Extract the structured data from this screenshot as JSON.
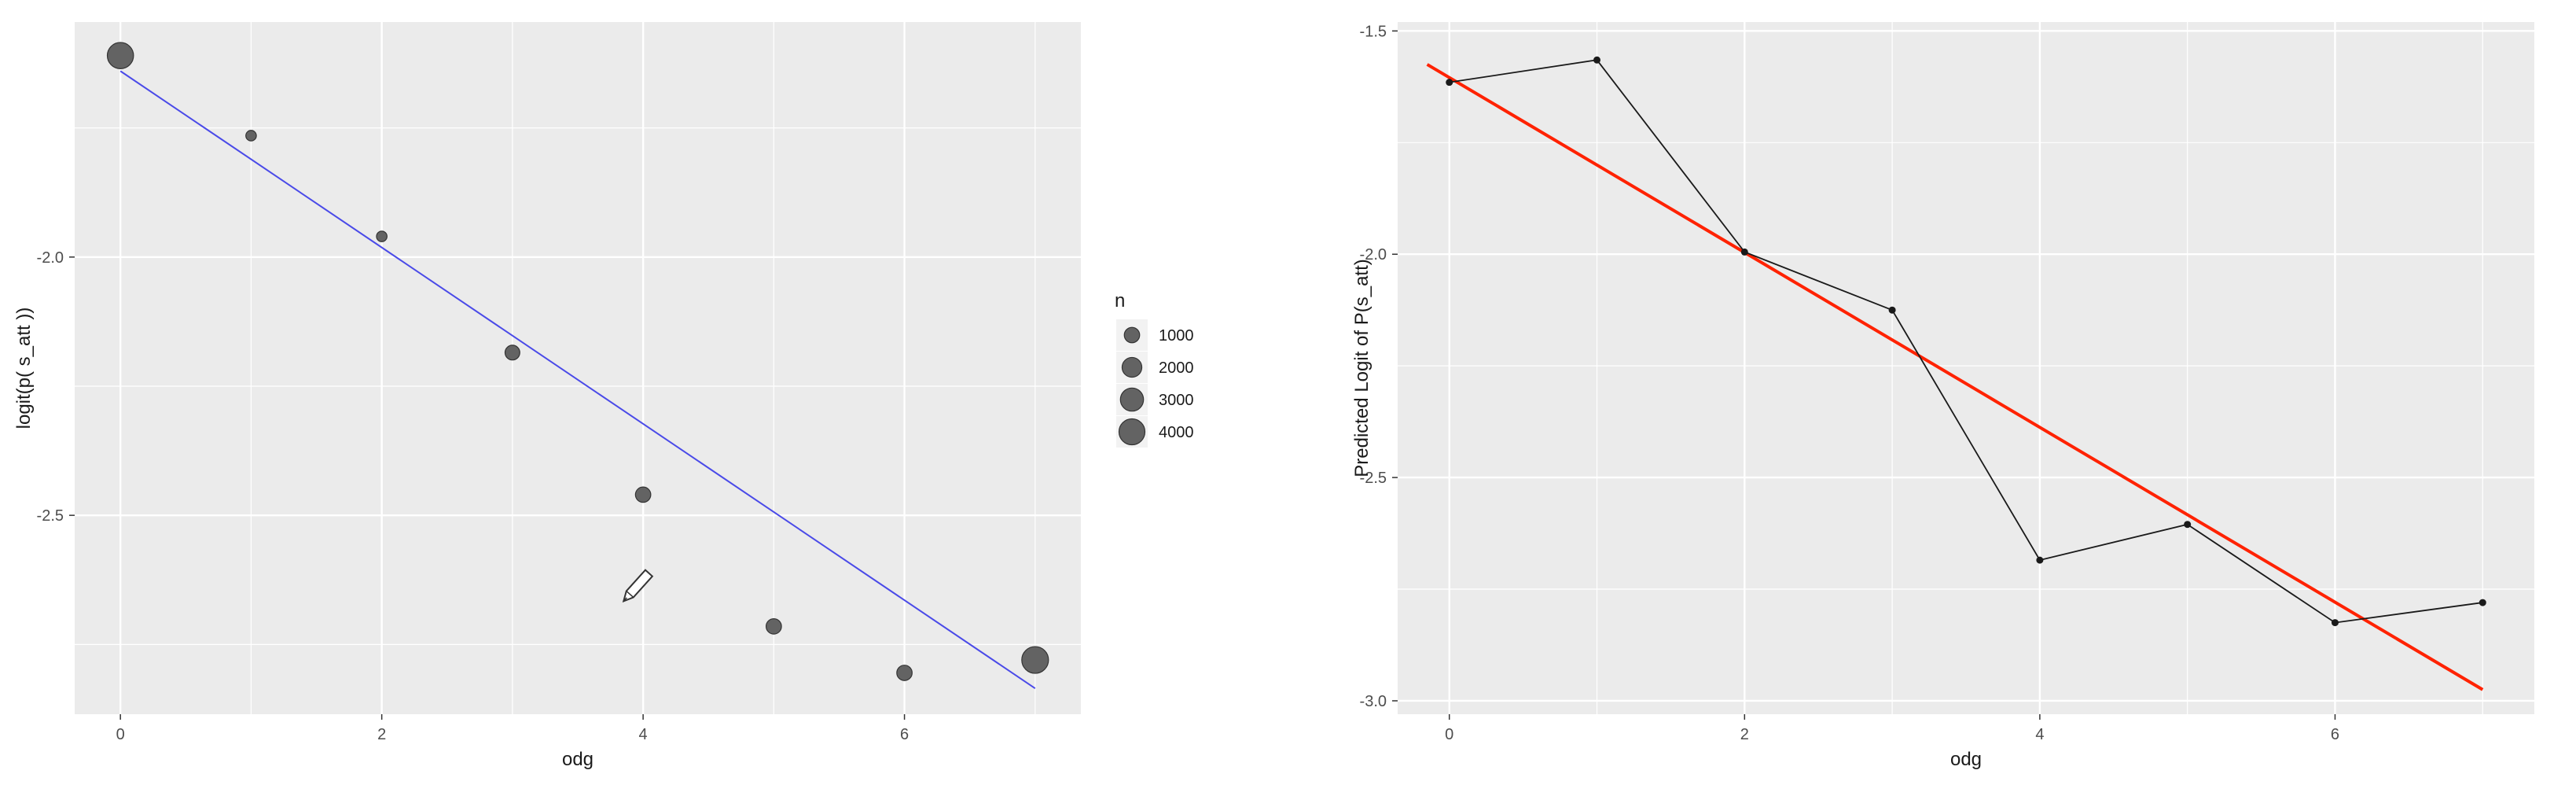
{
  "chart_data": [
    {
      "type": "scatter",
      "xlabel": "odg",
      "ylabel": "logit(p( s_att ))",
      "xlim": [
        -0.35,
        7.35
      ],
      "ylim": [
        -2.885,
        -1.545
      ],
      "x_ticks": [
        0,
        2,
        4,
        6
      ],
      "y_ticks": [
        -2.0,
        -2.5
      ],
      "grid": true,
      "points": [
        {
          "x": 0,
          "y": -1.61,
          "n": 4100
        },
        {
          "x": 1,
          "y": -1.765,
          "n": 300
        },
        {
          "x": 2,
          "y": -1.96,
          "n": 300
        },
        {
          "x": 3,
          "y": -2.185,
          "n": 900
        },
        {
          "x": 4,
          "y": -2.46,
          "n": 1000
        },
        {
          "x": 5,
          "y": -2.715,
          "n": 1000
        },
        {
          "x": 6,
          "y": -2.805,
          "n": 1000
        },
        {
          "x": 7,
          "y": -2.78,
          "n": 4300
        }
      ],
      "fit_line": {
        "x": [
          0,
          7
        ],
        "y": [
          -1.64,
          -2.835
        ],
        "color": "#4a4ae8"
      },
      "legend": {
        "title": "n",
        "placement": "right",
        "entries": [
          {
            "label": "1000",
            "n": 1000
          },
          {
            "label": "2000",
            "n": 2000
          },
          {
            "label": "3000",
            "n": 3000
          },
          {
            "label": "4000",
            "n": 4000
          }
        ]
      },
      "colors": {
        "panel": "#ebebeb",
        "grid": "#ffffff",
        "point_fill": "#636363",
        "point_stroke": "#333333"
      }
    },
    {
      "type": "line",
      "xlabel": "odg",
      "ylabel": "Predicted Logit of P(s_att)",
      "xlim": [
        -0.35,
        7.35
      ],
      "ylim": [
        -3.03,
        -1.48
      ],
      "x_ticks": [
        0,
        2,
        4,
        6
      ],
      "y_ticks": [
        -1.5,
        -2.0,
        -2.5,
        -3.0
      ],
      "y_tick_labels": [
        "-1.5",
        "-2.0",
        "-2.5",
        "-3.0"
      ],
      "grid": true,
      "series": [
        {
          "x": [
            0,
            1,
            2,
            3,
            4,
            5,
            6,
            7
          ],
          "values": [
            -1.615,
            -1.565,
            -1.995,
            -2.125,
            -2.685,
            -2.605,
            -2.825,
            -2.78
          ],
          "color": "#1a1a1a"
        }
      ],
      "fit_line": {
        "x": [
          -0.15,
          7
        ],
        "y": [
          -1.575,
          -2.975
        ],
        "color": "#ff2200"
      },
      "colors": {
        "panel": "#ebebeb",
        "grid": "#ffffff"
      }
    }
  ]
}
